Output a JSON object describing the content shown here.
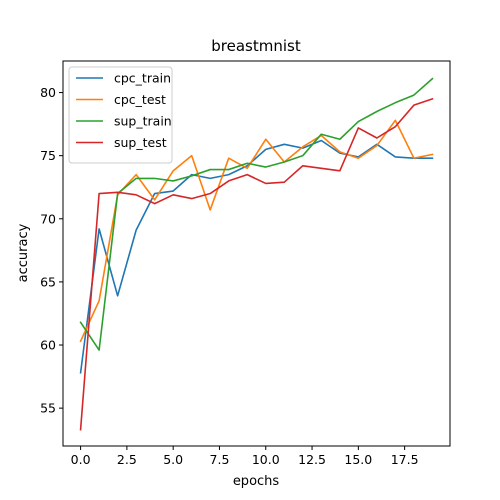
{
  "chart_data": {
    "type": "line",
    "title": "breastmnist",
    "xlabel": "epochs",
    "ylabel": "accuracy",
    "xlim": [
      -0.95,
      19.95
    ],
    "ylim": [
      52,
      82.5
    ],
    "xticks": [
      "0.0",
      "2.5",
      "5.0",
      "7.5",
      "10.0",
      "12.5",
      "15.0",
      "17.5"
    ],
    "xtick_values": [
      0,
      2.5,
      5,
      7.5,
      10,
      12.5,
      15,
      17.5
    ],
    "yticks": [
      "55",
      "60",
      "65",
      "70",
      "75",
      "80"
    ],
    "ytick_values": [
      55,
      60,
      65,
      70,
      75,
      80
    ],
    "grid": false,
    "legend_position": "top-left",
    "x": [
      0,
      1,
      2,
      3,
      4,
      5,
      6,
      7,
      8,
      9,
      10,
      11,
      12,
      13,
      14,
      15,
      16,
      17,
      18,
      19
    ],
    "series": [
      {
        "name": "cpc_train",
        "color": "#1f77b4",
        "values": [
          57.8,
          69.2,
          63.9,
          69.1,
          72.0,
          72.2,
          73.5,
          73.2,
          73.5,
          74.2,
          75.5,
          75.9,
          75.6,
          76.2,
          75.2,
          74.9,
          75.9,
          74.9,
          74.8,
          74.8
        ]
      },
      {
        "name": "cpc_test",
        "color": "#ff7f0e",
        "values": [
          60.3,
          63.5,
          71.9,
          73.5,
          71.5,
          73.8,
          75.0,
          70.7,
          74.8,
          74.0,
          76.3,
          74.5,
          75.7,
          76.6,
          75.3,
          74.8,
          75.8,
          77.8,
          74.8,
          75.1
        ]
      },
      {
        "name": "sup_train",
        "color": "#2ca02c",
        "values": [
          61.8,
          59.6,
          72.0,
          73.2,
          73.2,
          73.0,
          73.4,
          73.9,
          73.9,
          74.4,
          74.1,
          74.5,
          75.0,
          76.7,
          76.3,
          77.7,
          78.5,
          79.2,
          79.8,
          81.1
        ]
      },
      {
        "name": "sup_test",
        "color": "#d62728",
        "values": [
          53.3,
          72.0,
          72.1,
          71.9,
          71.2,
          71.9,
          71.6,
          72.0,
          73.0,
          73.5,
          72.8,
          72.9,
          74.2,
          74.0,
          73.8,
          77.2,
          76.4,
          77.3,
          79.0,
          79.5
        ]
      }
    ]
  }
}
